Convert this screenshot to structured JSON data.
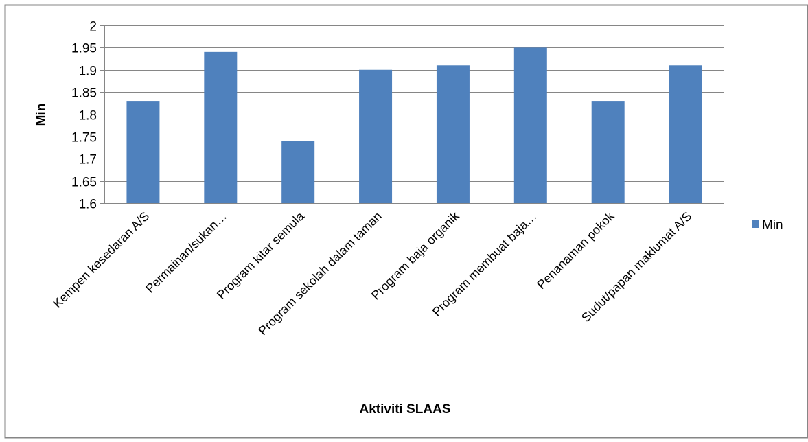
{
  "chart_data": {
    "type": "bar",
    "categories": [
      "Kempen kesedaran A/S",
      "Permainan/sukan…",
      "Program kitar semula",
      "Program sekolah dalam taman",
      "Program  baja organik",
      "Program  membuat baja…",
      "Penanaman pokok",
      "Sudut/papan maklumat A/S"
    ],
    "series": [
      {
        "name": "Min",
        "values": [
          1.83,
          1.94,
          1.74,
          1.9,
          1.91,
          1.95,
          1.83,
          1.91
        ]
      }
    ],
    "xlabel": "Aktiviti SLAAS",
    "ylabel": "Min",
    "ylim": [
      1.6,
      2.0
    ],
    "yticks": [
      "1.6",
      "1.65",
      "1.7",
      "1.75",
      "1.8",
      "1.85",
      "1.9",
      "1.95",
      "2"
    ],
    "grid": true,
    "legend_position": "right",
    "colors": {
      "bar": "#4f81bd",
      "grid": "#868686",
      "frame": "#868686"
    }
  }
}
